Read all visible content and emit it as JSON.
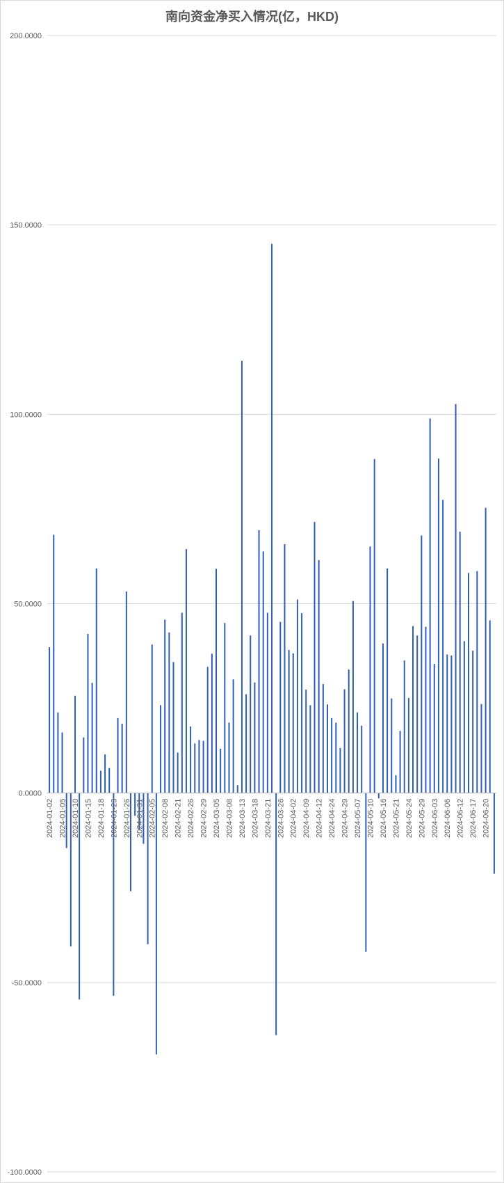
{
  "chart_data": {
    "type": "bar",
    "title": "南向资金净买入情况(亿，HKD)",
    "xlabel": "",
    "ylabel": "",
    "ylim": [
      -100,
      200
    ],
    "y_ticks": [
      "-100.0000",
      "-50.0000",
      "0.0000",
      "50.0000",
      "100.0000",
      "150.0000",
      "200.0000"
    ],
    "y_tick_values": [
      -100,
      -50,
      0,
      50,
      100,
      150,
      200
    ],
    "grid": true,
    "legend": "none",
    "bar_color": "#4472c4",
    "bar_color_dark": "#2f5eb5",
    "x_tick_labels": [
      "2024-01-02",
      "2024-01-05",
      "2024-01-10",
      "2024-01-15",
      "2024-01-18",
      "2024-01-23",
      "2024-01-26",
      "2024-01-31",
      "2024-02-05",
      "2024-02-08",
      "2024-02-21",
      "2024-02-26",
      "2024-02-29",
      "2024-03-05",
      "2024-03-08",
      "2024-03-13",
      "2024-03-18",
      "2024-03-21",
      "2024-03-26",
      "2024-04-02",
      "2024-04-09",
      "2024-04-12",
      "2024-04-24",
      "2024-04-29",
      "2024-05-07",
      "2024-05-10",
      "2024-05-16",
      "2024-05-21",
      "2024-05-24",
      "2024-05-29",
      "2024-06-03",
      "2024-06-06",
      "2024-06-12",
      "2024-06-17",
      "2024-06-20"
    ],
    "x_tick_every": 3,
    "values": [
      38.5,
      68.2,
      21.3,
      16.0,
      -14.5,
      -40.5,
      25.7,
      -54.5,
      14.7,
      42.0,
      29.1,
      59.3,
      5.9,
      10.2,
      6.6,
      -53.5,
      19.8,
      18.3,
      53.2,
      -25.9,
      -6.0,
      -9.8,
      -13.4,
      -39.9,
      39.2,
      -69.0,
      23.2,
      45.8,
      42.4,
      34.6,
      10.7,
      47.6,
      64.4,
      17.6,
      13.1,
      14.0,
      13.8,
      33.3,
      36.8,
      59.2,
      11.7,
      44.9,
      18.6,
      30.0,
      2.1,
      114.1,
      26.1,
      41.6,
      29.2,
      69.4,
      63.8,
      47.6,
      145.0,
      -63.9,
      45.2,
      65.7,
      37.8,
      36.9,
      51.1,
      47.5,
      27.3,
      23.2,
      71.6,
      61.5,
      28.8,
      23.4,
      19.8,
      18.6,
      11.9,
      27.4,
      32.6,
      50.7,
      21.3,
      17.8,
      -41.9,
      65.1,
      88.2,
      -1.4,
      39.5,
      59.3,
      25.0,
      4.7,
      16.4,
      35.0,
      25.1,
      44.1,
      41.6,
      68.0,
      43.9,
      98.9,
      34.1,
      88.3,
      77.4,
      36.6,
      36.3,
      102.7,
      69.0,
      40.1,
      58.1,
      37.6,
      58.6,
      23.5,
      75.3,
      45.6,
      -21.3
    ]
  }
}
